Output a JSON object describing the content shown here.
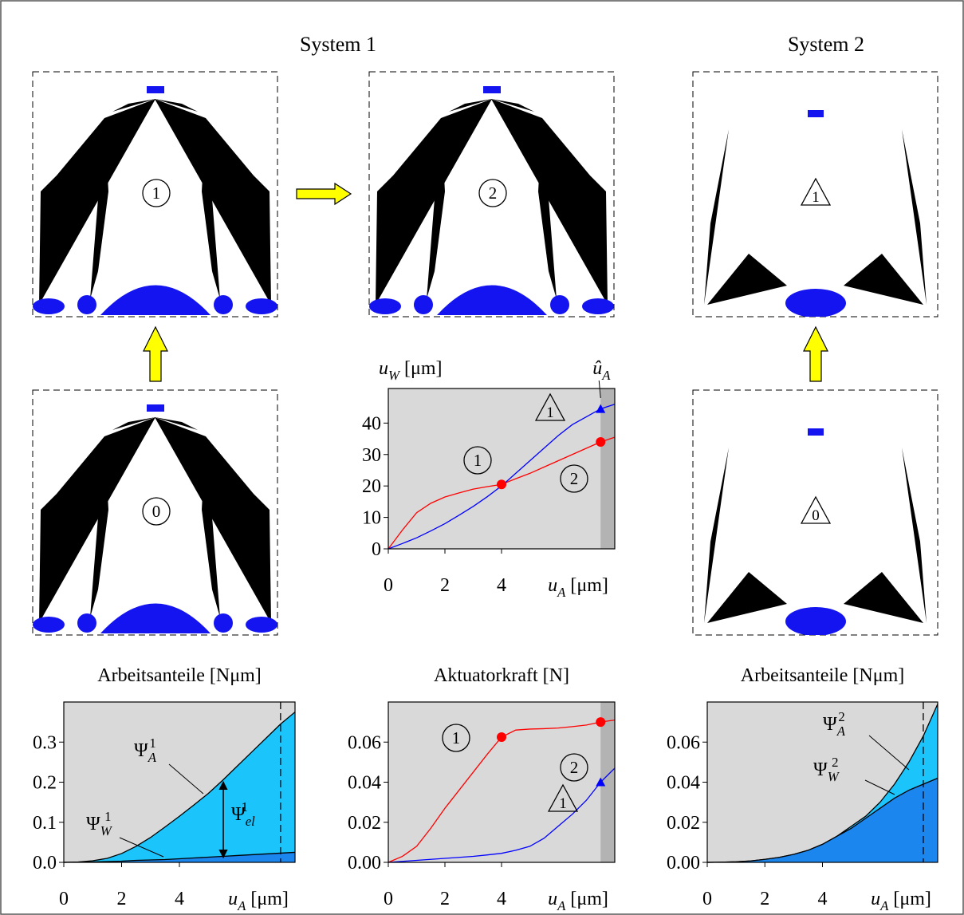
{
  "headers": [
    "System 1",
    "System 2"
  ],
  "structures": [
    {
      "label": "1",
      "frame": "circle"
    },
    {
      "label": "2",
      "frame": "circle"
    },
    {
      "label": "1",
      "frame": "triangle"
    },
    {
      "label": "0",
      "frame": "circle"
    },
    {
      "label": "0",
      "frame": "triangle"
    }
  ],
  "chart_data": [
    {
      "type": "line",
      "ylabel": {
        "base": "u",
        "sub": "W",
        "rest": " [μm]"
      },
      "xlabel": {
        "base": "u",
        "sub": "A",
        "rest": " [μm]"
      },
      "highlight": "band",
      "highlight_x": 7.5,
      "highlight_label": {
        "base": "û",
        "sub": "A"
      },
      "xlim": [
        0,
        8
      ],
      "xticks": [
        0,
        2,
        4
      ],
      "ylim": [
        0,
        51
      ],
      "yticks": [
        0,
        10,
        20,
        30,
        40
      ],
      "x": [
        0,
        0.5,
        1,
        1.5,
        2,
        2.5,
        3,
        3.5,
        4,
        4.5,
        5,
        5.5,
        6,
        6.5,
        7,
        7.5,
        8
      ],
      "series": [
        {
          "color": "#ff0000",
          "values": [
            0,
            6,
            11.5,
            14.5,
            16.5,
            17.8,
            19,
            19.8,
            20.5,
            22.3,
            24,
            26,
            28,
            30,
            32,
            34,
            35.5
          ]
        },
        {
          "color": "#0000ff",
          "values": [
            0,
            1.7,
            3.5,
            5.7,
            8,
            10.7,
            13.5,
            16.6,
            20,
            24,
            28,
            32,
            36,
            39.5,
            42,
            44.5,
            46
          ]
        }
      ],
      "markers": [
        {
          "x": 4,
          "y": 20.5,
          "shape": "circle",
          "color": "#ff0000"
        },
        {
          "x": 7.5,
          "y": 34,
          "shape": "circle",
          "color": "#ff0000"
        },
        {
          "x": 7.5,
          "y": 44.5,
          "shape": "triangle",
          "color": "#0000ff"
        }
      ],
      "annotations": [
        {
          "text": "1",
          "frame": "circle"
        },
        {
          "text": "2",
          "frame": "circle"
        },
        {
          "text": "1",
          "frame": "triangle"
        }
      ]
    },
    {
      "type": "area",
      "title": "Arbeitsanteile [Nμm]",
      "xlabel": {
        "base": "u",
        "sub": "A",
        "rest": " [μm]"
      },
      "highlight": "dashed",
      "highlight_x": 7.5,
      "xlim": [
        0,
        8
      ],
      "xticks": [
        0,
        2,
        4
      ],
      "ylim": [
        0,
        0.4
      ],
      "yticks": [
        {
          "value": 0,
          "label": "0.0"
        },
        0.1,
        0.2,
        0.3
      ],
      "x": [
        0,
        0.5,
        1,
        1.5,
        2,
        2.5,
        3,
        3.5,
        4,
        4.5,
        5,
        5.5,
        6,
        6.5,
        7,
        7.5,
        8
      ],
      "series": [
        {
          "label": {
            "base": "Ψ",
            "sub": "A",
            "sup": "1"
          },
          "color": "#1cc4fc",
          "values": [
            0,
            0.001,
            0.004,
            0.01,
            0.022,
            0.04,
            0.062,
            0.088,
            0.115,
            0.143,
            0.172,
            0.205,
            0.24,
            0.275,
            0.31,
            0.345,
            0.375
          ]
        },
        {
          "label": {
            "base": "Ψ",
            "sub": "W",
            "sup": "1"
          },
          "color": "#1a86ee",
          "values": [
            0,
            0.0005,
            0.001,
            0.002,
            0.003,
            0.005,
            0.006,
            0.007,
            0.009,
            0.011,
            0.013,
            0.015,
            0.017,
            0.019,
            0.021,
            0.023,
            0.025
          ]
        }
      ],
      "inner_label": {
        "base": "Ψ",
        "sub": "el",
        "sup": "1"
      }
    },
    {
      "type": "line",
      "title": "Aktuatorkraft [N]",
      "xlabel": {
        "base": "u",
        "sub": "A",
        "rest": " [μm]"
      },
      "highlight": "band",
      "highlight_x": 7.5,
      "xlim": [
        0,
        8
      ],
      "xticks": [
        0,
        2,
        4
      ],
      "ylim": [
        0,
        0.08
      ],
      "yticks": [
        {
          "value": 0,
          "label": "0.00"
        },
        0.02,
        0.04,
        0.06
      ],
      "x": [
        0,
        0.5,
        1,
        1.5,
        2,
        2.5,
        3,
        3.5,
        4,
        4.5,
        5,
        5.5,
        6,
        6.5,
        7,
        7.5,
        8
      ],
      "series": [
        {
          "color": "#ff0000",
          "values": [
            0,
            0.003,
            0.008,
            0.017,
            0.027,
            0.036,
            0.045,
            0.054,
            0.0625,
            0.066,
            0.0665,
            0.0667,
            0.067,
            0.0677,
            0.0685,
            0.07,
            0.071
          ]
        },
        {
          "color": "#0000ff",
          "values": [
            0,
            0.0005,
            0.001,
            0.0015,
            0.002,
            0.0025,
            0.003,
            0.0037,
            0.0045,
            0.006,
            0.008,
            0.012,
            0.018,
            0.024,
            0.031,
            0.04,
            0.047
          ]
        }
      ],
      "markers": [
        {
          "x": 4,
          "y": 0.0625,
          "shape": "circle",
          "color": "#ff0000"
        },
        {
          "x": 7.5,
          "y": 0.07,
          "shape": "circle",
          "color": "#ff0000"
        },
        {
          "x": 7.5,
          "y": 0.04,
          "shape": "triangle",
          "color": "#0000ff"
        }
      ],
      "annotations": [
        {
          "text": "1",
          "frame": "circle"
        },
        {
          "text": "2",
          "frame": "circle"
        },
        {
          "text": "1",
          "frame": "triangle"
        }
      ]
    },
    {
      "type": "area",
      "title": "Arbeitsanteile [Nμm]",
      "xlabel": {
        "base": "u",
        "sub": "A",
        "rest": " [μm]"
      },
      "highlight": "dashed",
      "highlight_x": 7.5,
      "xlim": [
        0,
        8
      ],
      "xticks": [
        0,
        2,
        4
      ],
      "ylim": [
        0,
        0.08
      ],
      "yticks": [
        {
          "value": 0,
          "label": "0.00"
        },
        0.02,
        0.04,
        0.06
      ],
      "x": [
        0,
        0.5,
        1,
        1.5,
        2,
        2.5,
        3,
        3.5,
        4,
        4.5,
        5,
        5.5,
        6,
        6.5,
        7,
        7.5,
        8
      ],
      "series": [
        {
          "label": {
            "base": "Ψ",
            "sub": "A",
            "sup": "2"
          },
          "color": "#1cc4fc",
          "values": [
            0,
            0.0001,
            0.0003,
            0.0007,
            0.0015,
            0.0025,
            0.004,
            0.006,
            0.009,
            0.013,
            0.018,
            0.023,
            0.03,
            0.039,
            0.05,
            0.063,
            0.079
          ]
        },
        {
          "label": {
            "base": "Ψ",
            "sub": "W",
            "sup": "2"
          },
          "color": "#1a86ee",
          "values": [
            0,
            0.0001,
            0.0003,
            0.0007,
            0.0015,
            0.0025,
            0.004,
            0.006,
            0.009,
            0.013,
            0.017,
            0.022,
            0.027,
            0.032,
            0.036,
            0.039,
            0.042
          ]
        }
      ]
    }
  ]
}
